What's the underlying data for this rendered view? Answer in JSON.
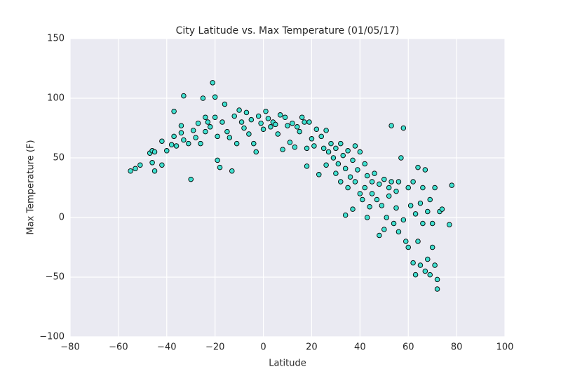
{
  "chart_data": {
    "type": "scatter",
    "title": "City Latitude vs. Max Temperature (01/05/17)",
    "xlabel": "Latitude",
    "ylabel": "Max Temperature (F)",
    "color": "#40e0d0",
    "edge_color": "#000000",
    "xlim": [
      -80,
      100
    ],
    "ylim": [
      -100,
      150
    ],
    "xticks": [
      {
        "value": -80,
        "label": "−80"
      },
      {
        "value": -60,
        "label": "−60"
      },
      {
        "value": -40,
        "label": "−40"
      },
      {
        "value": -20,
        "label": "−20"
      },
      0,
      20,
      40,
      60,
      80,
      100
    ],
    "yticks": [
      {
        "value": -100,
        "label": "−100"
      },
      {
        "value": -50,
        "label": "−50"
      },
      0,
      50,
      100,
      150
    ],
    "grid": true,
    "x": [
      -55,
      -53,
      -51,
      -47,
      -46,
      -45,
      -46,
      -45,
      -42,
      -42,
      -40,
      -38,
      -37,
      -37,
      -36,
      -34,
      -34,
      -33,
      -33,
      -31,
      -30,
      -29,
      -28,
      -27,
      -26,
      -25,
      -24,
      -24,
      -23,
      -22,
      -21,
      -20,
      -20,
      -19,
      -19,
      -18,
      -17,
      -16,
      -15,
      -14,
      -13,
      -12,
      -11,
      -10,
      -9,
      -8,
      -7,
      -6,
      -5,
      -4,
      -3,
      -2,
      -1,
      0,
      1,
      2,
      3,
      4,
      5,
      6,
      7,
      8,
      9,
      10,
      11,
      12,
      13,
      14,
      15,
      16,
      17,
      18,
      18,
      19,
      20,
      21,
      22,
      23,
      24,
      25,
      26,
      26,
      27,
      28,
      29,
      30,
      30,
      31,
      32,
      32,
      33,
      34,
      34,
      35,
      35,
      36,
      37,
      37,
      38,
      38,
      39,
      40,
      40,
      41,
      42,
      42,
      43,
      43,
      44,
      45,
      45,
      46,
      47,
      48,
      48,
      49,
      50,
      50,
      51,
      52,
      52,
      53,
      53,
      54,
      55,
      55,
      56,
      56,
      57,
      58,
      58,
      59,
      60,
      60,
      61,
      62,
      62,
      63,
      63,
      64,
      64,
      65,
      65,
      66,
      66,
      67,
      67,
      68,
      68,
      69,
      69,
      70,
      70,
      71,
      71,
      72,
      72,
      73,
      74,
      77,
      78
    ],
    "values": [
      39,
      41,
      44,
      54,
      56,
      55,
      46,
      39,
      64,
      44,
      56,
      61,
      89,
      68,
      60,
      77,
      71,
      102,
      65,
      62,
      32,
      73,
      67,
      79,
      62,
      100,
      84,
      72,
      80,
      76,
      113,
      101,
      84,
      68,
      48,
      42,
      80,
      95,
      72,
      67,
      39,
      85,
      62,
      90,
      80,
      75,
      88,
      70,
      82,
      62,
      55,
      85,
      79,
      74,
      89,
      83,
      76,
      80,
      78,
      70,
      86,
      57,
      84,
      77,
      63,
      79,
      59,
      76,
      72,
      84,
      80,
      43,
      58,
      80,
      66,
      60,
      74,
      36,
      68,
      58,
      73,
      44,
      55,
      62,
      50,
      58,
      37,
      45,
      62,
      30,
      52,
      41,
      2,
      25,
      56,
      34,
      48,
      7,
      60,
      30,
      40,
      20,
      55,
      15,
      25,
      45,
      35,
      0,
      9,
      30,
      20,
      37,
      15,
      -15,
      28,
      10,
      32,
      -10,
      0,
      18,
      25,
      30,
      77,
      -5,
      8,
      22,
      -12,
      30,
      50,
      75,
      -2,
      -20,
      -25,
      25,
      10,
      -38,
      30,
      -48,
      3,
      -20,
      42,
      -40,
      12,
      -5,
      25,
      -45,
      40,
      -35,
      5,
      -48,
      15,
      -25,
      -5,
      -40,
      25,
      -52,
      -60,
      5,
      7,
      -6,
      27
    ]
  }
}
